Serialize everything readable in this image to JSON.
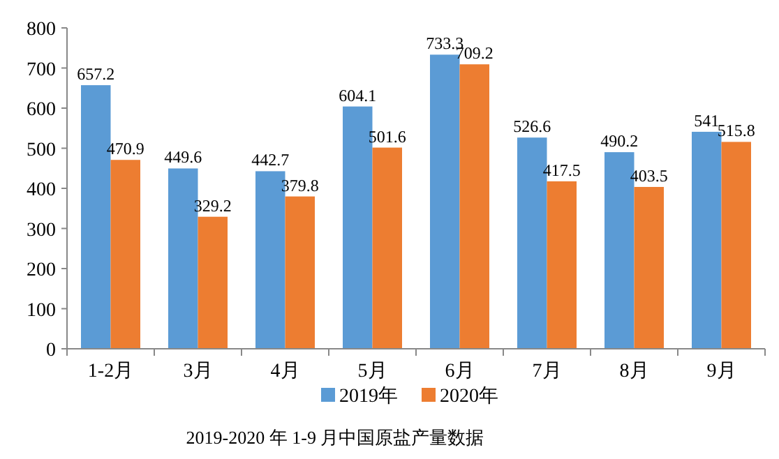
{
  "chart_data": {
    "type": "bar",
    "title": "2019-2020 年 1-9 月中国原盐产量数据",
    "categories": [
      "1-2月",
      "3月",
      "4月",
      "5月",
      "6月",
      "7月",
      "8月",
      "9月"
    ],
    "series": [
      {
        "name": "2019年",
        "color": "#5b9bd5",
        "values": [
          657.2,
          449.6,
          442.7,
          604.1,
          733.3,
          526.6,
          490.2,
          541
        ]
      },
      {
        "name": "2020年",
        "color": "#ed7d31",
        "values": [
          470.9,
          329.2,
          379.8,
          501.6,
          709.2,
          417.5,
          403.5,
          515.8
        ]
      }
    ],
    "ylim": [
      0,
      800
    ],
    "yticks": [
      0,
      100,
      200,
      300,
      400,
      500,
      600,
      700,
      800
    ],
    "data_labels": true,
    "legend": "bottom",
    "grid": false
  }
}
